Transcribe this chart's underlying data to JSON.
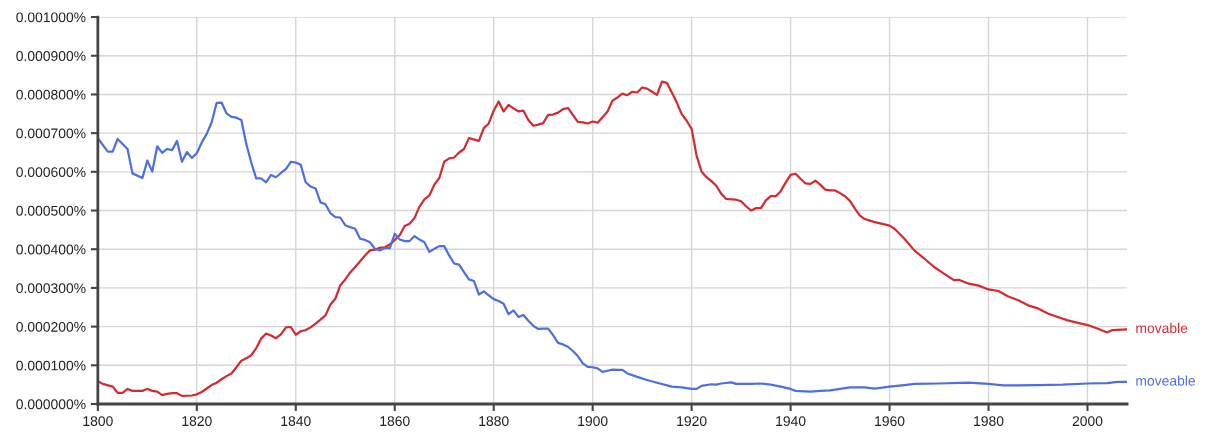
{
  "chart_data": {
    "type": "line",
    "series": [
      {
        "name": "movable",
        "color": "#d42a32",
        "x": [
          1800,
          1801,
          1803,
          1804,
          1805,
          1806,
          1807,
          1809,
          1810,
          1811,
          1812,
          1813,
          1814,
          1815,
          1816,
          1817,
          1819,
          1820,
          1821,
          1822,
          1823,
          1824,
          1825,
          1826,
          1827,
          1828,
          1829,
          1830,
          1831,
          1832,
          1833,
          1834,
          1835,
          1836,
          1837,
          1838,
          1839,
          1840,
          1841,
          1842,
          1843,
          1844,
          1845,
          1846,
          1847,
          1848,
          1849,
          1850,
          1851,
          1852,
          1853,
          1854,
          1855,
          1856,
          1857,
          1858,
          1859,
          1860,
          1861,
          1862,
          1863,
          1864,
          1865,
          1866,
          1867,
          1868,
          1869,
          1870,
          1871,
          1872,
          1873,
          1874,
          1875,
          1877,
          1878,
          1879,
          1880,
          1881,
          1882,
          1883,
          1884,
          1885,
          1886,
          1887,
          1888,
          1889,
          1890,
          1891,
          1892,
          1893,
          1894,
          1895,
          1896,
          1897,
          1898,
          1899,
          1900,
          1901,
          1902,
          1903,
          1904,
          1905,
          1906,
          1907,
          1908,
          1909,
          1910,
          1911,
          1912,
          1913,
          1914,
          1915,
          1916,
          1917,
          1918,
          1919,
          1920,
          1921,
          1922,
          1923,
          1924,
          1925,
          1926,
          1927,
          1928,
          1929,
          1930,
          1931,
          1932,
          1933,
          1934,
          1935,
          1936,
          1937,
          1938,
          1939,
          1940,
          1941,
          1942,
          1943,
          1944,
          1945,
          1946,
          1947,
          1948,
          1949,
          1950,
          1951,
          1952,
          1953,
          1954,
          1955,
          1956,
          1957,
          1959,
          1960,
          1961,
          1963,
          1965,
          1967,
          1969,
          1971,
          1973,
          1974,
          1976,
          1978,
          1980,
          1982,
          1984,
          1986,
          1988,
          1990,
          1992,
          1994,
          1996,
          2000,
          2002,
          2004,
          2005,
          2008
        ],
        "values": [
          5.9e-05,
          5.2e-05,
          4.5e-05,
          2.9e-05,
          2.9e-05,
          3.9e-05,
          3.4e-05,
          3.4e-05,
          3.9e-05,
          3.4e-05,
          3.2e-05,
          2.3e-05,
          2.6e-05,
          2.8e-05,
          2.8e-05,
          2.1e-05,
          2.2e-05,
          2.5e-05,
          3.1e-05,
          4e-05,
          4.9e-05,
          5.5e-05,
          6.4e-05,
          7.2e-05,
          7.9e-05,
          9.5e-05,
          0.000112,
          0.000118,
          0.000126,
          0.000144,
          0.000169,
          0.000182,
          0.000177,
          0.00017,
          0.00018,
          0.000198,
          0.000199,
          0.000179,
          0.000188,
          0.000191,
          0.000198,
          0.000208,
          0.000218,
          0.000229,
          0.000257,
          0.000272,
          0.000307,
          0.000322,
          0.00034,
          0.000354,
          0.000369,
          0.000384,
          0.000397,
          0.000399,
          0.000404,
          0.000405,
          0.000412,
          0.000424,
          0.000436,
          0.00046,
          0.000466,
          0.000481,
          0.00051,
          0.000529,
          0.000539,
          0.000567,
          0.000584,
          0.000626,
          0.000635,
          0.000637,
          0.00065,
          0.000659,
          0.000687,
          0.00068,
          0.000713,
          0.000725,
          0.000758,
          0.000782,
          0.000756,
          0.000773,
          0.000764,
          0.000756,
          0.000758,
          0.000734,
          0.000719,
          0.000722,
          0.000726,
          0.000747,
          0.000748,
          0.000753,
          0.000762,
          0.000765,
          0.000747,
          0.000729,
          0.000728,
          0.000725,
          0.00073,
          0.000727,
          0.000741,
          0.000756,
          0.000784,
          0.000792,
          0.000802,
          0.000798,
          0.000807,
          0.000805,
          0.000818,
          0.000815,
          0.000807,
          0.000799,
          0.000833,
          0.00083,
          0.000805,
          0.000779,
          0.000749,
          0.000732,
          0.000711,
          0.000642,
          0.000601,
          0.000586,
          0.000576,
          0.000564,
          0.000543,
          0.00053,
          0.000529,
          0.000528,
          0.000524,
          0.000511,
          0.0005,
          0.000506,
          0.000506,
          0.000526,
          0.000537,
          0.000537,
          0.00055,
          0.000572,
          0.000592,
          0.000595,
          0.000582,
          0.00057,
          0.000569,
          0.000577,
          0.000567,
          0.000554,
          0.000552,
          0.000552,
          0.000545,
          0.000537,
          0.000525,
          0.000505,
          0.000487,
          0.000478,
          0.000474,
          0.00047,
          0.000464,
          0.000461,
          0.000453,
          0.000427,
          0.000397,
          0.000376,
          0.000354,
          0.000337,
          0.00032,
          0.000321,
          0.000311,
          0.000306,
          0.000296,
          0.000292,
          0.000278,
          0.000268,
          0.000255,
          0.000247,
          0.000234,
          0.000225,
          0.000216,
          0.000204,
          0.000195,
          0.000185,
          0.000191,
          0.000193
        ]
      },
      {
        "name": "moveable",
        "color": "#4d6fe0",
        "x": [
          1800,
          1802,
          1803,
          1804,
          1806,
          1807,
          1809,
          1810,
          1811,
          1812,
          1813,
          1814,
          1815,
          1816,
          1817,
          1818,
          1819,
          1820,
          1821,
          1822,
          1823,
          1824,
          1825,
          1826,
          1827,
          1828,
          1829,
          1830,
          1831,
          1832,
          1833,
          1834,
          1835,
          1836,
          1837,
          1838,
          1839,
          1840,
          1841,
          1842,
          1843,
          1844,
          1845,
          1846,
          1847,
          1848,
          1849,
          1850,
          1851,
          1852,
          1853,
          1854,
          1855,
          1856,
          1857,
          1858,
          1859,
          1860,
          1861,
          1862,
          1863,
          1864,
          1865,
          1866,
          1867,
          1868,
          1869,
          1870,
          1871,
          1872,
          1873,
          1874,
          1875,
          1876,
          1877,
          1878,
          1879,
          1880,
          1881,
          1882,
          1883,
          1884,
          1885,
          1886,
          1887,
          1888,
          1889,
          1890,
          1891,
          1892,
          1893,
          1894,
          1895,
          1896,
          1897,
          1898,
          1899,
          1900,
          1901,
          1902,
          1903,
          1904,
          1905,
          1906,
          1907,
          1909,
          1911,
          1913,
          1916,
          1918,
          1920,
          1921,
          1922,
          1924,
          1925,
          1926,
          1928,
          1929,
          1932,
          1934,
          1936,
          1938,
          1940,
          1941,
          1944,
          1946,
          1948,
          1952,
          1955,
          1957,
          1960,
          1963,
          1965,
          1970,
          1976,
          1980,
          1983,
          1990,
          1995,
          2000,
          2004,
          2006,
          2008
        ],
        "values": [
          0.000687,
          0.000652,
          0.000652,
          0.000685,
          0.000659,
          0.000596,
          0.000584,
          0.000629,
          0.000601,
          0.000666,
          0.000649,
          0.000659,
          0.000656,
          0.00068,
          0.000626,
          0.000651,
          0.000636,
          0.000648,
          0.000676,
          0.000698,
          0.000728,
          0.000778,
          0.000779,
          0.000751,
          0.000742,
          0.00074,
          0.000734,
          0.000672,
          0.000624,
          0.000583,
          0.000583,
          0.000573,
          0.000592,
          0.000586,
          0.000597,
          0.000607,
          0.000626,
          0.000624,
          0.000618,
          0.000573,
          0.000562,
          0.000557,
          0.000521,
          0.000516,
          0.000493,
          0.000483,
          0.000482,
          0.000462,
          0.000457,
          0.000453,
          0.000427,
          0.000424,
          0.000418,
          0.000401,
          0.000397,
          0.000403,
          0.000403,
          0.00044,
          0.000425,
          0.000421,
          0.000421,
          0.000434,
          0.000425,
          0.000418,
          0.000393,
          0.000401,
          0.000408,
          0.000408,
          0.000384,
          0.000363,
          0.00036,
          0.000341,
          0.000322,
          0.000318,
          0.000283,
          0.000291,
          0.000281,
          0.000271,
          0.000266,
          0.000259,
          0.000232,
          0.000242,
          0.000225,
          0.00023,
          0.000215,
          0.000202,
          0.000194,
          0.000195,
          0.000195,
          0.000178,
          0.000158,
          0.000154,
          0.000148,
          0.000137,
          0.000124,
          0.000105,
          9.6e-05,
          9.5e-05,
          9.2e-05,
          8.3e-05,
          8.6e-05,
          8.9e-05,
          8.8e-05,
          8.8e-05,
          7.9e-05,
          7e-05,
          6.2e-05,
          5.5e-05,
          4.5e-05,
          4.3e-05,
          3.9e-05,
          3.9e-05,
          4.7e-05,
          5.1e-05,
          5e-05,
          5.3e-05,
          5.6e-05,
          5.2e-05,
          5.2e-05,
          5.3e-05,
          5e-05,
          4.5e-05,
          3.9e-05,
          3.4e-05,
          3.2e-05,
          3.4e-05,
          3.5e-05,
          4.3e-05,
          4.3e-05,
          4e-05,
          4.5e-05,
          4.9e-05,
          5.2e-05,
          5.3e-05,
          5.5e-05,
          5.2e-05,
          4.8e-05,
          4.9e-05,
          5e-05,
          5.3e-05,
          5.4e-05,
          5.7e-05,
          5.7e-05
        ]
      }
    ],
    "xlim": [
      1800,
      2008
    ],
    "xticks": [
      1800,
      1820,
      1840,
      1860,
      1880,
      1900,
      1920,
      1940,
      1960,
      1980,
      2000
    ],
    "ylim": [
      0,
      0.001
    ],
    "yticks": [
      {
        "value": 0,
        "label": "0.000000%"
      },
      {
        "value": 0.0001,
        "label": "0.000100%"
      },
      {
        "value": 0.0002,
        "label": "0.000200%"
      },
      {
        "value": 0.0003,
        "label": "0.000300%"
      },
      {
        "value": 0.0004,
        "label": "0.000400%"
      },
      {
        "value": 0.0005,
        "label": "0.000500%"
      },
      {
        "value": 0.0006,
        "label": "0.000600%"
      },
      {
        "value": 0.0007,
        "label": "0.000700%"
      },
      {
        "value": 0.0008,
        "label": "0.000800%"
      },
      {
        "value": 0.0009,
        "label": "0.000900%"
      },
      {
        "value": 0.001,
        "label": "0.001000%"
      }
    ],
    "grid": true,
    "line_style": "solid"
  }
}
